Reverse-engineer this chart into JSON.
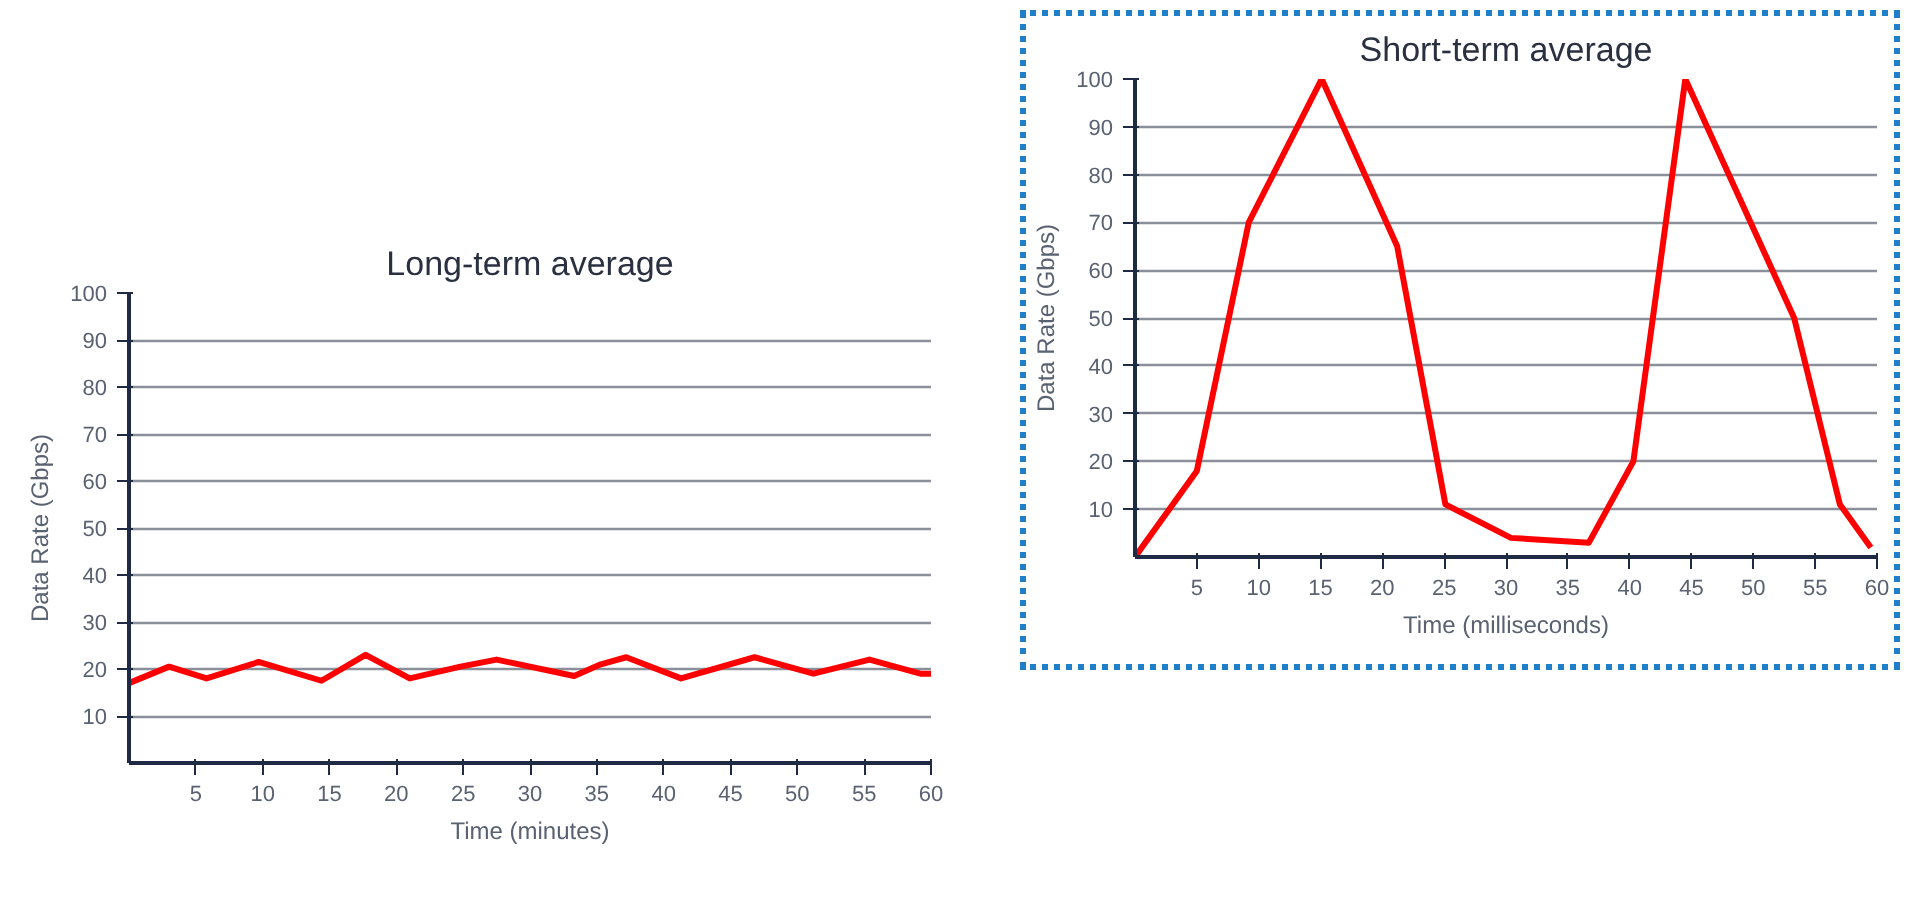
{
  "chart_data": [
    {
      "type": "line",
      "title": "Long-term average",
      "xlabel": "Time (minutes)",
      "ylabel": "Data Rate (Gbps)",
      "x": [
        0,
        3,
        5.8,
        9.7,
        14.4,
        17.7,
        21,
        24.8,
        27.5,
        33.3,
        35.3,
        37.2,
        41.3,
        46.8,
        51.2,
        55.4,
        59.2,
        60
      ],
      "series": [
        {
          "color": "#ff0000",
          "values": [
            17,
            20.5,
            18,
            21.5,
            17.5,
            23,
            18,
            20.5,
            22,
            18.5,
            21,
            22.5,
            18,
            22.5,
            19,
            22,
            19,
            19
          ]
        }
      ],
      "xlim": [
        0,
        60
      ],
      "ylim": [
        0,
        100
      ],
      "xticks": [
        5,
        10,
        15,
        20,
        25,
        30,
        35,
        40,
        45,
        50,
        55,
        60
      ],
      "yticks": [
        10,
        20,
        30,
        40,
        50,
        60,
        70,
        80,
        90,
        100
      ],
      "grid": "y",
      "marker": "none",
      "line_style": "solid"
    },
    {
      "type": "line",
      "title": "Short-term average",
      "xlabel": "Time (milliseconds)",
      "ylabel": "Data Rate (Gbps)",
      "x": [
        0,
        5,
        9.2,
        15.1,
        21.2,
        25.1,
        30.4,
        36.7,
        40.3,
        44.5,
        53.3,
        57,
        59.5
      ],
      "series": [
        {
          "color": "#ff0000",
          "values": [
            0,
            18,
            70,
            100,
            65,
            11,
            4,
            3,
            20,
            100,
            50,
            11,
            2
          ]
        }
      ],
      "xlim": [
        0,
        60
      ],
      "ylim": [
        0,
        100
      ],
      "xticks": [
        5,
        10,
        15,
        20,
        25,
        30,
        35,
        40,
        45,
        50,
        55,
        60
      ],
      "yticks": [
        10,
        20,
        30,
        40,
        50,
        60,
        70,
        80,
        90,
        100
      ],
      "grid": "y",
      "marker": "none",
      "line_style": "solid"
    }
  ]
}
